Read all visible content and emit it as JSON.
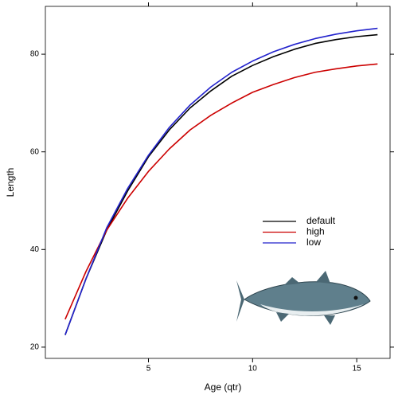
{
  "chart_data": {
    "type": "line",
    "x_label": "Age (qtr)",
    "y_label": "Length",
    "x": [
      1,
      2,
      3,
      4,
      5,
      6,
      7,
      8,
      9,
      10,
      11,
      12,
      13,
      14,
      15,
      16
    ],
    "series": [
      {
        "name": "default",
        "color": "#000000",
        "values": [
          22.5,
          34,
          44,
          52,
          59,
          64.5,
          69,
          72.5,
          75.5,
          77.7,
          79.5,
          81,
          82.2,
          83,
          83.6,
          84
        ]
      },
      {
        "name": "high",
        "color": "#cc0000",
        "values": [
          25.7,
          35.5,
          44,
          50.5,
          56,
          60.6,
          64.5,
          67.5,
          70,
          72.2,
          73.8,
          75.2,
          76.3,
          77,
          77.6,
          78
        ]
      },
      {
        "name": "low",
        "color": "#2222cc",
        "values": [
          22.5,
          34,
          44.5,
          52.5,
          59.3,
          65,
          69.6,
          73.3,
          76.3,
          78.6,
          80.5,
          82,
          83.2,
          84.1,
          84.8,
          85.3
        ]
      }
    ],
    "xlim": [
      0.05,
      16.6
    ],
    "ylim": [
      17.7,
      89.8
    ],
    "xticks": [
      5,
      10,
      15
    ],
    "yticks": [
      20,
      40,
      60,
      80
    ]
  }
}
